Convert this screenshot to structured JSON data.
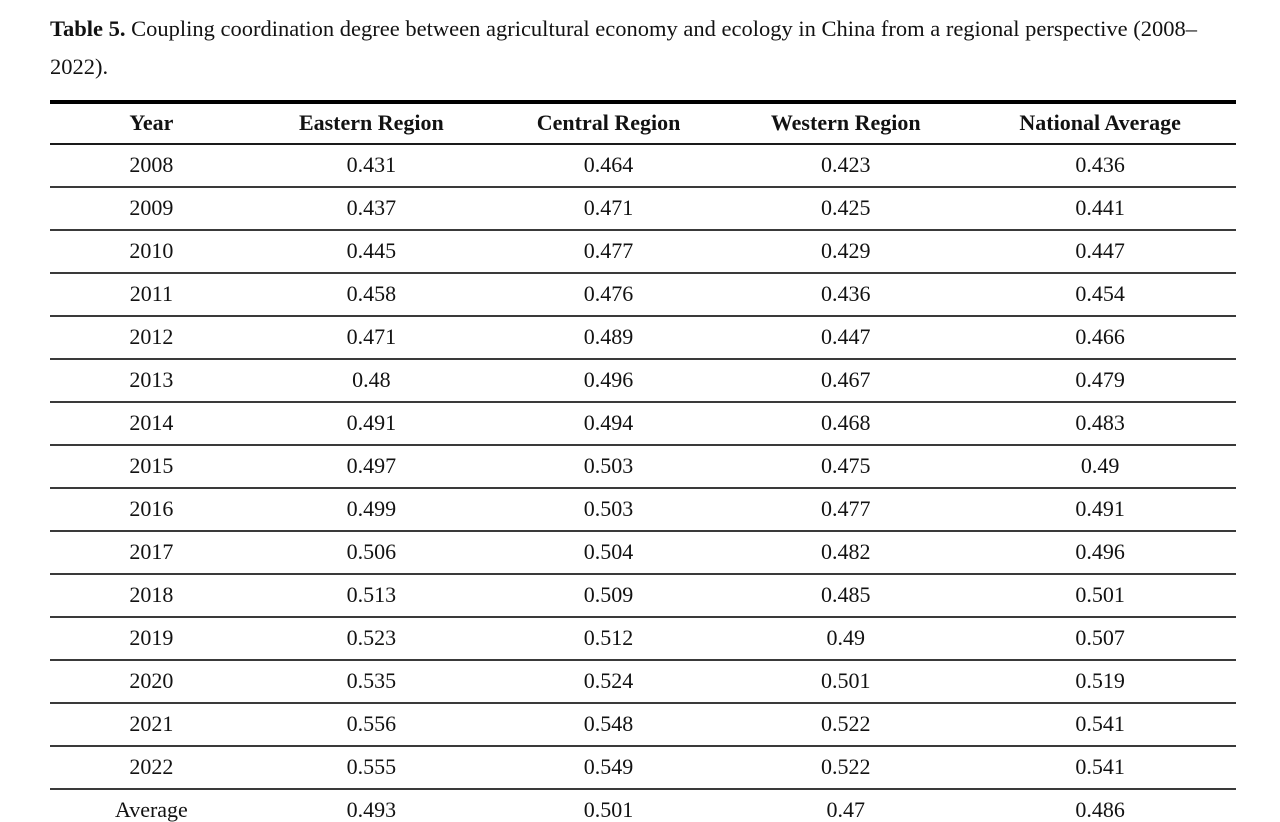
{
  "caption": {
    "label": "Table 5.",
    "text": "Coupling coordination degree between agricultural economy and ecology in China from a regional perspective (2008–2022)."
  },
  "table": {
    "columns": [
      "Year",
      "Eastern Region",
      "Central Region",
      "Western Region",
      "National Average"
    ],
    "rows": [
      [
        "2008",
        "0.431",
        "0.464",
        "0.423",
        "0.436"
      ],
      [
        "2009",
        "0.437",
        "0.471",
        "0.425",
        "0.441"
      ],
      [
        "2010",
        "0.445",
        "0.477",
        "0.429",
        "0.447"
      ],
      [
        "2011",
        "0.458",
        "0.476",
        "0.436",
        "0.454"
      ],
      [
        "2012",
        "0.471",
        "0.489",
        "0.447",
        "0.466"
      ],
      [
        "2013",
        "0.48",
        "0.496",
        "0.467",
        "0.479"
      ],
      [
        "2014",
        "0.491",
        "0.494",
        "0.468",
        "0.483"
      ],
      [
        "2015",
        "0.497",
        "0.503",
        "0.475",
        "0.49"
      ],
      [
        "2016",
        "0.499",
        "0.503",
        "0.477",
        "0.491"
      ],
      [
        "2017",
        "0.506",
        "0.504",
        "0.482",
        "0.496"
      ],
      [
        "2018",
        "0.513",
        "0.509",
        "0.485",
        "0.501"
      ],
      [
        "2019",
        "0.523",
        "0.512",
        "0.49",
        "0.507"
      ],
      [
        "2020",
        "0.535",
        "0.524",
        "0.501",
        "0.519"
      ],
      [
        "2021",
        "0.556",
        "0.548",
        "0.522",
        "0.541"
      ],
      [
        "2022",
        "0.555",
        "0.549",
        "0.522",
        "0.541"
      ],
      [
        "Average",
        "0.493",
        "0.501",
        "0.47",
        "0.486"
      ]
    ]
  },
  "colors": {
    "text": "#121212",
    "rule_heavy": "#000000",
    "rule_header": "#1a1a1a",
    "rule_row": "#3a3a3a",
    "background": "#ffffff"
  }
}
